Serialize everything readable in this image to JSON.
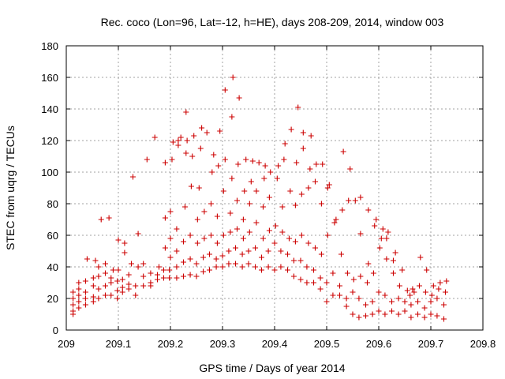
{
  "chart_data": {
    "type": "scatter",
    "title": "Rec. coco (Lon=96, Lat=-12, h=HE), days 208-209, 2014, window 003",
    "xlabel": "GPS time / Days of year 2014",
    "ylabel": "STEC from uqrg / TECUs",
    "xlim": [
      209,
      209.8
    ],
    "ylim": [
      0,
      180
    ],
    "xticks": [
      "209",
      "209.1",
      "209.2",
      "209.3",
      "209.4",
      "209.5",
      "209.6",
      "209.7",
      "209.8"
    ],
    "yticks": [
      "0",
      "20",
      "40",
      "60",
      "80",
      "100",
      "120",
      "140",
      "160",
      "180"
    ],
    "grid": true,
    "legend": "none",
    "marker": "plus",
    "color": "#cc0000",
    "series": [
      {
        "points": [
          [
            209.013,
            10
          ],
          [
            209.013,
            12
          ],
          [
            209.013,
            16
          ],
          [
            209.013,
            20
          ],
          [
            209.013,
            24
          ],
          [
            209.024,
            14
          ],
          [
            209.024,
            18
          ],
          [
            209.024,
            22
          ],
          [
            209.024,
            26
          ],
          [
            209.024,
            30
          ],
          [
            209.037,
            16
          ],
          [
            209.037,
            20
          ],
          [
            209.037,
            24
          ],
          [
            209.037,
            31
          ],
          [
            209.04,
            45
          ],
          [
            209.052,
            18
          ],
          [
            209.052,
            21
          ],
          [
            209.052,
            28
          ],
          [
            209.052,
            33
          ],
          [
            209.056,
            44
          ],
          [
            209.062,
            20
          ],
          [
            209.062,
            26
          ],
          [
            209.062,
            34
          ],
          [
            209.062,
            40
          ],
          [
            209.067,
            70
          ],
          [
            209.075,
            22
          ],
          [
            209.075,
            28
          ],
          [
            209.075,
            36
          ],
          [
            209.075,
            42
          ],
          [
            209.082,
            71
          ],
          [
            209.086,
            22
          ],
          [
            209.086,
            30
          ],
          [
            209.086,
            33
          ],
          [
            209.09,
            38
          ],
          [
            209.098,
            20
          ],
          [
            209.098,
            25
          ],
          [
            209.098,
            31
          ],
          [
            209.1,
            57
          ],
          [
            209.1,
            38
          ],
          [
            209.108,
            24
          ],
          [
            209.108,
            27
          ],
          [
            209.108,
            32
          ],
          [
            209.112,
            49
          ],
          [
            209.112,
            55
          ],
          [
            209.12,
            26
          ],
          [
            209.12,
            29
          ],
          [
            209.12,
            35
          ],
          [
            209.125,
            42
          ],
          [
            209.128,
            97
          ],
          [
            209.133,
            22
          ],
          [
            209.133,
            28
          ],
          [
            209.138,
            40
          ],
          [
            209.138,
            61
          ],
          [
            209.148,
            28
          ],
          [
            209.148,
            34
          ],
          [
            209.148,
            42
          ],
          [
            209.155,
            108
          ],
          [
            209.162,
            28
          ],
          [
            209.162,
            30
          ],
          [
            209.162,
            36
          ],
          [
            209.17,
            122
          ],
          [
            209.175,
            32
          ],
          [
            209.175,
            35
          ],
          [
            209.178,
            40
          ],
          [
            209.187,
            33
          ],
          [
            209.187,
            38
          ],
          [
            209.19,
            52
          ],
          [
            209.19,
            71
          ],
          [
            209.19,
            106
          ],
          [
            209.198,
            33
          ],
          [
            209.198,
            38
          ],
          [
            209.2,
            46
          ],
          [
            209.2,
            58
          ],
          [
            209.2,
            75
          ],
          [
            209.203,
            108
          ],
          [
            209.205,
            119
          ],
          [
            209.212,
            33
          ],
          [
            209.212,
            40
          ],
          [
            209.212,
            50
          ],
          [
            209.212,
            64
          ],
          [
            209.215,
            117
          ],
          [
            209.215,
            120
          ],
          [
            209.22,
            122
          ],
          [
            209.225,
            34
          ],
          [
            209.225,
            43
          ],
          [
            209.225,
            56
          ],
          [
            209.228,
            78
          ],
          [
            209.23,
            112
          ],
          [
            209.23,
            138
          ],
          [
            209.232,
            120
          ],
          [
            209.238,
            35
          ],
          [
            209.238,
            45
          ],
          [
            209.238,
            60
          ],
          [
            209.24,
            91
          ],
          [
            209.242,
            110
          ],
          [
            209.245,
            123
          ],
          [
            209.25,
            34
          ],
          [
            209.25,
            42
          ],
          [
            209.252,
            55
          ],
          [
            209.252,
            70
          ],
          [
            209.255,
            90
          ],
          [
            209.258,
            115
          ],
          [
            209.26,
            128
          ],
          [
            209.263,
            37
          ],
          [
            209.263,
            46
          ],
          [
            209.265,
            58
          ],
          [
            209.265,
            75
          ],
          [
            209.27,
            125
          ],
          [
            209.275,
            38
          ],
          [
            209.275,
            48
          ],
          [
            209.278,
            60
          ],
          [
            209.278,
            80
          ],
          [
            209.28,
            100
          ],
          [
            209.283,
            111
          ],
          [
            209.288,
            40
          ],
          [
            209.288,
            45
          ],
          [
            209.29,
            55
          ],
          [
            209.29,
            72
          ],
          [
            209.292,
            104
          ],
          [
            209.295,
            126
          ],
          [
            209.3,
            40
          ],
          [
            209.3,
            47
          ],
          [
            209.302,
            60
          ],
          [
            209.302,
            88
          ],
          [
            209.305,
            108
          ],
          [
            209.305,
            152
          ],
          [
            209.312,
            42
          ],
          [
            209.312,
            50
          ],
          [
            209.315,
            62
          ],
          [
            209.315,
            74
          ],
          [
            209.318,
            96
          ],
          [
            209.318,
            135
          ],
          [
            209.32,
            160
          ],
          [
            209.325,
            42
          ],
          [
            209.325,
            52
          ],
          [
            209.328,
            64
          ],
          [
            209.328,
            82
          ],
          [
            209.33,
            105
          ],
          [
            209.332,
            147
          ],
          [
            209.338,
            40
          ],
          [
            209.338,
            48
          ],
          [
            209.34,
            58
          ],
          [
            209.34,
            70
          ],
          [
            209.342,
            88
          ],
          [
            209.345,
            108
          ],
          [
            209.35,
            42
          ],
          [
            209.35,
            50
          ],
          [
            209.352,
            62
          ],
          [
            209.352,
            80
          ],
          [
            209.355,
            94
          ],
          [
            209.358,
            107
          ],
          [
            209.363,
            40
          ],
          [
            209.363,
            52
          ],
          [
            209.365,
            68
          ],
          [
            209.365,
            88
          ],
          [
            209.37,
            106
          ],
          [
            209.375,
            38
          ],
          [
            209.375,
            46
          ],
          [
            209.378,
            58
          ],
          [
            209.378,
            78
          ],
          [
            209.38,
            96
          ],
          [
            209.382,
            104
          ],
          [
            209.388,
            40
          ],
          [
            209.388,
            50
          ],
          [
            209.39,
            63
          ],
          [
            209.39,
            84
          ],
          [
            209.392,
            100
          ],
          [
            209.4,
            38
          ],
          [
            209.4,
            55
          ],
          [
            209.402,
            66
          ],
          [
            209.405,
            96
          ],
          [
            209.407,
            104
          ],
          [
            209.412,
            40
          ],
          [
            209.412,
            50
          ],
          [
            209.415,
            62
          ],
          [
            209.415,
            78
          ],
          [
            209.418,
            108
          ],
          [
            209.42,
            118
          ],
          [
            209.425,
            38
          ],
          [
            209.425,
            48
          ],
          [
            209.428,
            58
          ],
          [
            209.43,
            88
          ],
          [
            209.432,
            127
          ],
          [
            209.437,
            34
          ],
          [
            209.437,
            44
          ],
          [
            209.44,
            56
          ],
          [
            209.44,
            79
          ],
          [
            209.442,
            106
          ],
          [
            209.445,
            141
          ],
          [
            209.45,
            32
          ],
          [
            209.45,
            44
          ],
          [
            209.452,
            60
          ],
          [
            209.452,
            86
          ],
          [
            209.455,
            115
          ],
          [
            209.455,
            125
          ],
          [
            209.462,
            30
          ],
          [
            209.462,
            40
          ],
          [
            209.465,
            55
          ],
          [
            209.465,
            90
          ],
          [
            209.468,
            102
          ],
          [
            209.47,
            123
          ],
          [
            209.475,
            30
          ],
          [
            209.475,
            38
          ],
          [
            209.478,
            52
          ],
          [
            209.478,
            94
          ],
          [
            209.48,
            105
          ],
          [
            209.488,
            26
          ],
          [
            209.488,
            33
          ],
          [
            209.49,
            48
          ],
          [
            209.49,
            80
          ],
          [
            209.492,
            105
          ],
          [
            209.5,
            18
          ],
          [
            209.5,
            30
          ],
          [
            209.502,
            60
          ],
          [
            209.502,
            90
          ],
          [
            209.505,
            92
          ],
          [
            209.512,
            22
          ],
          [
            209.512,
            36
          ],
          [
            209.515,
            68
          ],
          [
            209.518,
            70
          ],
          [
            209.525,
            22
          ],
          [
            209.525,
            28
          ],
          [
            209.528,
            48
          ],
          [
            209.53,
            76
          ],
          [
            209.532,
            113
          ],
          [
            209.538,
            15
          ],
          [
            209.538,
            20
          ],
          [
            209.54,
            36
          ],
          [
            209.542,
            82
          ],
          [
            209.545,
            102
          ],
          [
            209.55,
            10
          ],
          [
            209.55,
            24
          ],
          [
            209.552,
            32
          ],
          [
            209.555,
            82
          ],
          [
            209.562,
            8
          ],
          [
            209.562,
            20
          ],
          [
            209.565,
            34
          ],
          [
            209.565,
            61
          ],
          [
            209.565,
            84
          ],
          [
            209.575,
            9
          ],
          [
            209.575,
            16
          ],
          [
            209.578,
            30
          ],
          [
            209.58,
            42
          ],
          [
            209.58,
            76
          ],
          [
            209.588,
            10
          ],
          [
            209.588,
            18
          ],
          [
            209.59,
            36
          ],
          [
            209.592,
            66
          ],
          [
            209.595,
            70
          ],
          [
            209.6,
            12
          ],
          [
            209.6,
            24
          ],
          [
            209.602,
            52
          ],
          [
            209.605,
            58
          ],
          [
            209.608,
            64
          ],
          [
            209.612,
            10
          ],
          [
            209.612,
            22
          ],
          [
            209.615,
            45
          ],
          [
            209.615,
            58
          ],
          [
            209.618,
            62
          ],
          [
            209.625,
            12
          ],
          [
            209.625,
            18
          ],
          [
            209.628,
            36
          ],
          [
            209.628,
            44
          ],
          [
            209.632,
            49
          ],
          [
            209.638,
            10
          ],
          [
            209.638,
            20
          ],
          [
            209.64,
            28
          ],
          [
            209.645,
            38
          ],
          [
            209.65,
            12
          ],
          [
            209.65,
            18
          ],
          [
            209.655,
            25
          ],
          [
            209.66,
            22
          ],
          [
            209.662,
            8
          ],
          [
            209.662,
            16
          ],
          [
            209.665,
            26
          ],
          [
            209.668,
            24
          ],
          [
            209.675,
            10
          ],
          [
            209.675,
            18
          ],
          [
            209.678,
            28
          ],
          [
            209.68,
            46
          ],
          [
            209.688,
            8
          ],
          [
            209.688,
            14
          ],
          [
            209.69,
            24
          ],
          [
            209.692,
            38
          ],
          [
            209.7,
            10
          ],
          [
            209.7,
            18
          ],
          [
            209.702,
            22
          ],
          [
            209.705,
            28
          ],
          [
            209.712,
            9
          ],
          [
            209.712,
            20
          ],
          [
            209.715,
            26
          ],
          [
            209.718,
            30
          ],
          [
            209.725,
            7
          ],
          [
            209.725,
            16
          ],
          [
            209.728,
            24
          ],
          [
            209.73,
            31
          ]
        ]
      }
    ]
  }
}
